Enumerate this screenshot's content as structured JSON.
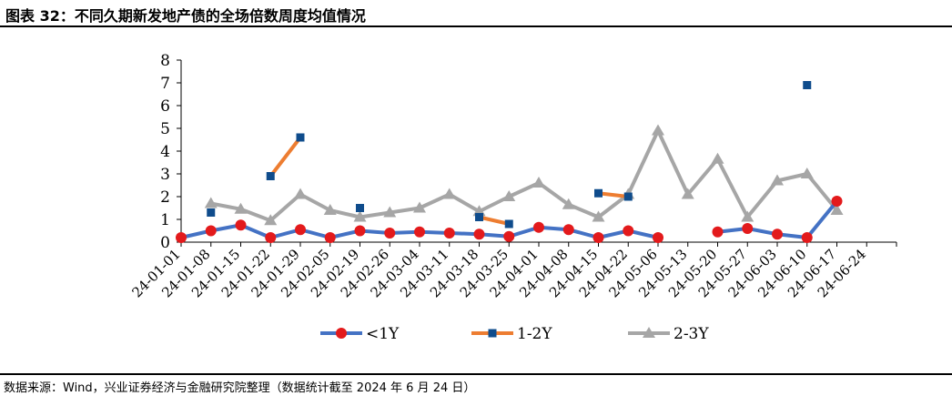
{
  "header": {
    "title": "图表 32：不同久期新发地产债的全场倍数周度均值情况"
  },
  "footer": {
    "source": "数据来源：Wind，兴业证券经济与金融研究院整理（数据统计截至 2024 年 6 月 24 日）"
  },
  "chart_data": {
    "type": "line",
    "title": "",
    "xlabel": "",
    "ylabel": "",
    "ylim": [
      0,
      8
    ],
    "yticks": [
      0,
      1,
      2,
      3,
      4,
      5,
      6,
      7,
      8
    ],
    "grid": false,
    "legend_position": "bottom",
    "categories": [
      "24-01-01",
      "24-01-08",
      "24-01-15",
      "24-01-22",
      "24-01-29",
      "24-02-05",
      "24-02-19",
      "24-02-26",
      "24-03-04",
      "24-03-11",
      "24-03-18",
      "24-03-25",
      "24-04-01",
      "24-04-08",
      "24-04-15",
      "24-04-22",
      "24-05-06",
      "24-05-13",
      "24-05-20",
      "24-05-27",
      "24-06-03",
      "24-06-10",
      "24-06-17",
      "24-06-24"
    ],
    "series": [
      {
        "name": "<1Y",
        "color": "#4472C4",
        "marker_color": "#E31A1C",
        "marker": "circle",
        "values": [
          0.2,
          0.5,
          0.75,
          0.2,
          0.55,
          0.2,
          0.5,
          0.4,
          0.45,
          0.4,
          0.35,
          0.25,
          0.65,
          0.55,
          0.2,
          0.5,
          0.2,
          null,
          0.45,
          0.6,
          0.35,
          0.2,
          1.8,
          null
        ]
      },
      {
        "name": "1-2Y",
        "color": "#ED7D31",
        "marker_color": "#0F4C8C",
        "marker": "square",
        "values": [
          null,
          1.3,
          null,
          2.9,
          4.6,
          null,
          1.5,
          null,
          null,
          null,
          1.1,
          0.8,
          null,
          null,
          2.15,
          2.0,
          null,
          null,
          null,
          null,
          null,
          6.9,
          null,
          null
        ]
      },
      {
        "name": "2-3Y",
        "color": "#A6A6A6",
        "marker_color": "#A6A6A6",
        "marker": "triangle",
        "values": [
          null,
          1.7,
          1.45,
          0.95,
          2.1,
          1.4,
          1.1,
          1.3,
          1.5,
          2.1,
          1.35,
          2.0,
          2.6,
          1.65,
          1.1,
          2.1,
          4.9,
          2.1,
          3.65,
          1.1,
          2.7,
          3.0,
          1.4,
          null
        ]
      }
    ]
  }
}
